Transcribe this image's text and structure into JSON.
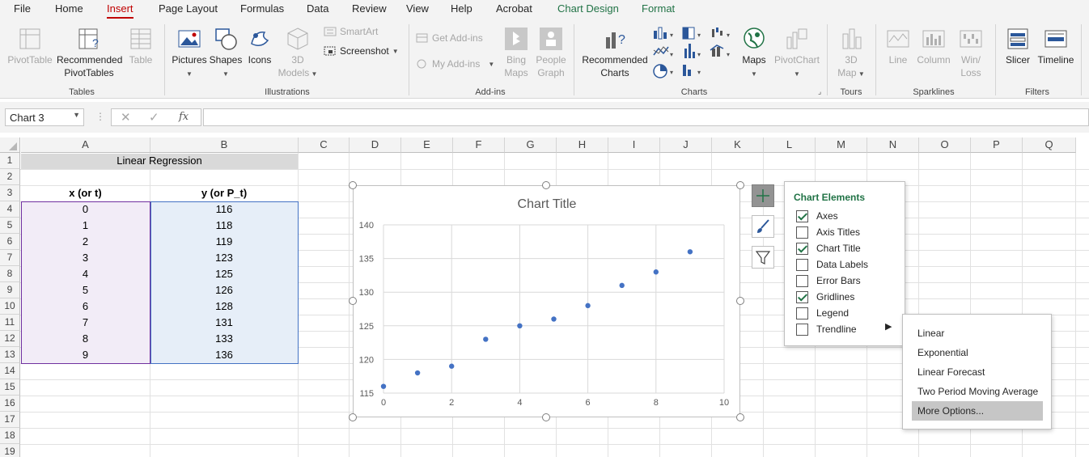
{
  "ribbon_tabs": [
    "File",
    "Home",
    "Insert",
    "Page Layout",
    "Formulas",
    "Data",
    "Review",
    "View",
    "Help",
    "Acrobat",
    "Chart Design",
    "Format"
  ],
  "ribbon": {
    "tables": {
      "pivot": "PivotTable",
      "recommended": "Recommended",
      "recommended2": "PivotTables",
      "table": "Table",
      "label": "Tables"
    },
    "illustrations": {
      "pictures": "Pictures",
      "shapes": "Shapes",
      "icons": "Icons",
      "models": "3D",
      "models2": "Models",
      "smartart": "SmartArt",
      "screenshot": "Screenshot",
      "label": "Illustrations"
    },
    "addins": {
      "get": "Get Add-ins",
      "my": "My Add-ins",
      "bing": "Bing",
      "bing2": "Maps",
      "people": "People",
      "people2": "Graph",
      "label": "Add-ins"
    },
    "charts": {
      "recommended": "Recommended",
      "recommended2": "Charts",
      "maps": "Maps",
      "pivotchart": "PivotChart",
      "label": "Charts"
    },
    "tours": {
      "map": "3D",
      "map2": "Map",
      "label": "Tours"
    },
    "sparklines": {
      "line": "Line",
      "column": "Column",
      "winloss": "Win/",
      "winloss2": "Loss",
      "label": "Sparklines"
    },
    "filters": {
      "slicer": "Slicer",
      "timeline": "Timeline",
      "label": "Filters"
    }
  },
  "namebox": "Chart 3",
  "columns": [
    "A",
    "B",
    "C",
    "D",
    "E",
    "F",
    "G",
    "H",
    "I",
    "J",
    "K",
    "L",
    "M",
    "N",
    "O",
    "P",
    "Q"
  ],
  "rows": [
    "1",
    "2",
    "3",
    "4",
    "5",
    "6",
    "7",
    "8",
    "9",
    "10",
    "11",
    "12",
    "13",
    "14",
    "15",
    "16",
    "17",
    "18",
    "19"
  ],
  "sheet": {
    "merged_title": "Linear Regression",
    "header_x": "x (or t)",
    "header_y": "y (or P_t)",
    "x_values": [
      "0",
      "1",
      "2",
      "3",
      "4",
      "5",
      "6",
      "7",
      "8",
      "9"
    ],
    "y_values": [
      "116",
      "118",
      "119",
      "123",
      "125",
      "126",
      "128",
      "131",
      "133",
      "136"
    ]
  },
  "chart_data": {
    "type": "scatter",
    "title": "Chart Title",
    "x": [
      0,
      1,
      2,
      3,
      4,
      5,
      6,
      7,
      8,
      9
    ],
    "y": [
      116,
      118,
      119,
      123,
      125,
      126,
      128,
      131,
      133,
      136
    ],
    "xlim": [
      0,
      10
    ],
    "ylim": [
      115,
      140
    ],
    "x_ticks": [
      "0",
      "2",
      "4",
      "6",
      "8",
      "10"
    ],
    "y_ticks": [
      "115",
      "120",
      "125",
      "130",
      "135",
      "140"
    ],
    "grid": true,
    "marker_color": "#4472c4"
  },
  "chart_elements": {
    "title": "Chart Elements",
    "items": [
      {
        "label": "Axes",
        "checked": true
      },
      {
        "label": "Axis Titles",
        "checked": false
      },
      {
        "label": "Chart Title",
        "checked": true
      },
      {
        "label": "Data Labels",
        "checked": false
      },
      {
        "label": "Error Bars",
        "checked": false
      },
      {
        "label": "Gridlines",
        "checked": true
      },
      {
        "label": "Legend",
        "checked": false
      },
      {
        "label": "Trendline",
        "checked": false
      }
    ]
  },
  "trendline_menu": [
    "Linear",
    "Exponential",
    "Linear Forecast",
    "Two Period Moving Average",
    "More Options..."
  ],
  "colors": {
    "accent": "#217346",
    "tab_active": "#c00000",
    "selection_x": "#7030a0",
    "selection_y": "#4472c4"
  }
}
